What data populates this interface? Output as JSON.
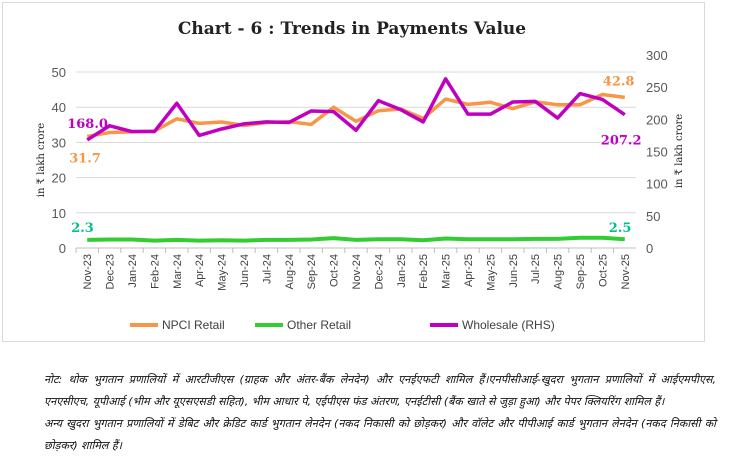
{
  "chart_data": {
    "type": "line",
    "title": "Chart - 6 : Trends in Payments Value",
    "ylabel": "in ₹ lakh crore",
    "y2label": "in ₹ lakh crore",
    "ylim": [
      0,
      50
    ],
    "y2lim": [
      0,
      300
    ],
    "yticks": [
      "0",
      "10",
      "20",
      "30",
      "40",
      "50"
    ],
    "y2ticks": [
      "0",
      "50",
      "100",
      "150",
      "200",
      "250",
      "300"
    ],
    "grid": true,
    "legend": "bottom",
    "categories": [
      "Nov-23",
      "Dec-23",
      "Jan-24",
      "Feb-24",
      "Mar-24",
      "Apr-24",
      "May-24",
      "Jun-24",
      "Jul-24",
      "Aug-24",
      "Sep-24",
      "Oct-24",
      "Nov-24",
      "Dec-24",
      "Jan-25",
      "Feb-25",
      "Mar-25",
      "Apr-25",
      "May-25",
      "Jun-25",
      "Jul-25",
      "Aug-25",
      "Sep-25",
      "Oct-25",
      "Nov-25"
    ],
    "series": [
      {
        "name": "NPCI Retail",
        "axis": "left",
        "color": "#f79646",
        "values": [
          31.7,
          32.8,
          33.0,
          33.2,
          36.7,
          35.4,
          35.8,
          34.8,
          35.6,
          35.9,
          35.1,
          40.0,
          36.0,
          39.0,
          39.5,
          36.8,
          42.3,
          40.8,
          41.4,
          39.6,
          41.5,
          40.7,
          40.7,
          43.6,
          42.8
        ],
        "labels": {
          "first": "31.7",
          "last": "42.8"
        }
      },
      {
        "name": "Other Retail",
        "axis": "left",
        "color": "#33cc33",
        "label_color": "#00c08b",
        "values": [
          2.3,
          2.4,
          2.4,
          2.1,
          2.3,
          2.1,
          2.2,
          2.1,
          2.3,
          2.3,
          2.4,
          2.8,
          2.3,
          2.5,
          2.5,
          2.2,
          2.7,
          2.5,
          2.5,
          2.5,
          2.6,
          2.6,
          2.9,
          2.9,
          2.5
        ],
        "labels": {
          "first": "2.3",
          "last": "2.5"
        }
      },
      {
        "name": "Wholesale (RHS)",
        "axis": "right",
        "color": "#c000c0",
        "values": [
          168.0,
          190,
          181,
          181,
          225,
          175,
          185,
          193,
          196,
          195,
          213,
          212,
          183,
          229,
          215,
          196,
          263,
          208,
          208,
          227,
          228,
          202,
          240,
          231,
          207.2
        ],
        "labels": {
          "first": "168.0",
          "last": "207.2"
        }
      }
    ]
  },
  "notes": [
    "नोट: थोक भुगतान प्रणालियों में आरटीजीएस (ग्राहक और अंतर-बैंक लेनदेन) और एनईएफटी शामिल हैं।एनपीसीआई-खुदरा भुगतान प्रणालियों में आईएमपीएस, एनएसीएच, यूपीआई (भीम और यूएसएसडी सहित), भीम आधार पे, एईपीएस फंड अंतरण, एनईटीसी (बैंक खाते से जुड़ा हुआ) और पेपर क्लियरिंग शामिल हैं।",
    "अन्य खुदरा भुगतान प्रणालियों में डेबिट और क्रेडिट कार्ड भुगतान लेनदेन (नकद निकासी को छोड़कर) और वॉलेट और पीपीआई कार्ड भुगतान लेनदेन (नकद निकासी को छोड़कर) शामिल हैं।"
  ]
}
